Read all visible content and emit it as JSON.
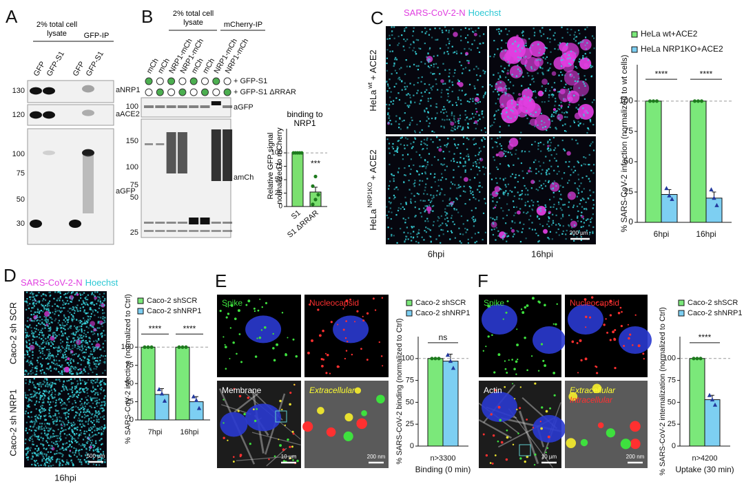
{
  "panel_labels": [
    "A",
    "B",
    "C",
    "D",
    "E",
    "F"
  ],
  "panel_a": {
    "header_lysate": "2% total cell lysate",
    "header_ip": "GFP-IP",
    "lanes": [
      "GFP",
      "GFP-S1",
      "GFP",
      "GFP-S1"
    ],
    "blots": [
      {
        "antibody": "aNRP1",
        "markers": [
          130
        ]
      },
      {
        "antibody": "aACE2",
        "markers": [
          120
        ]
      },
      {
        "antibody": "aGFP",
        "markers": [
          100,
          75,
          50,
          30
        ]
      }
    ]
  },
  "panel_b": {
    "header_lysate": "2% total cell lysate",
    "header_ip": "mCherry-IP",
    "lanes": [
      "mCh",
      "mCh",
      "NRP1-mCh",
      "NRP1-mCh",
      "mCh",
      "mCh",
      "NRP1-mCh",
      "NRP1-mCh"
    ],
    "conditions": [
      {
        "label": "+ GFP-S1",
        "present": [
          true,
          false,
          true,
          false,
          true,
          false,
          true,
          false
        ]
      },
      {
        "label": "+ GFP-S1 ΔRRAR",
        "present": [
          false,
          true,
          false,
          true,
          false,
          true,
          false,
          true
        ]
      }
    ],
    "blots": [
      {
        "antibody": "aGFP",
        "markers": [
          100
        ]
      },
      {
        "antibody": "amCh",
        "markers": [
          150,
          100,
          75,
          50,
          25
        ]
      }
    ]
  },
  "panel_c": {
    "stain_n": "SARS-CoV-2-N",
    "stain_h": "Hoechst",
    "rows": [
      {
        "base": "HeLa",
        "sup": "wt",
        "rest": "+ ACE2"
      },
      {
        "base": "HeLa",
        "sup": "NRP1KO",
        "rest": "+ ACE2"
      }
    ],
    "columns": [
      "6hpi",
      "16hpi"
    ],
    "scale_bar": "200 µm"
  },
  "panel_d": {
    "stain_n": "SARS-CoV-2-N",
    "stain_h": "Hoechst",
    "rows": [
      "Caco-2 sh SCR",
      "Caco-2 sh NRP1"
    ],
    "column": "16hpi",
    "scale_bar": "500 µm"
  },
  "panel_e": {
    "tiles": [
      "Spike",
      "Nucleocapsid",
      "Membrane",
      "Extracellular"
    ],
    "scale_bars": [
      "10 µm",
      "200 nm"
    ]
  },
  "panel_f": {
    "tiles": [
      "Spike",
      "Nucleocapsid",
      "Actin"
    ],
    "overlay": [
      "Extracellular",
      "Intracellular"
    ],
    "scale_bars": [
      "10 µm",
      "200 nm"
    ]
  },
  "chart_data": [
    {
      "type": "bar",
      "title": "binding to NRP1",
      "ylabel": "Relative GFP signal normalized to mCherry",
      "categories": [
        "S1",
        "S1 ΔRRAR"
      ],
      "series": [
        {
          "color": "#7be06f",
          "values": [
            100,
            27
          ],
          "errors": [
            null,
            9
          ],
          "points": [
            [
              100,
              100,
              100,
              100,
              100
            ],
            [
              4,
              13,
              22,
              38,
              56
            ]
          ],
          "point_color": "#1e7a1e",
          "marker": "circle"
        }
      ],
      "ylim": [
        0,
        145
      ],
      "yticks": [
        0,
        25,
        50,
        75,
        100
      ],
      "refline": 100,
      "significance": [
        null,
        "***"
      ]
    },
    {
      "type": "bar",
      "ylabel": "% SARS-CoV-2 infection (normalized to wt cells)",
      "categories": [
        "6hpi",
        "16hpi"
      ],
      "series": [
        {
          "name": "HeLa wt+ACE2",
          "color": "#7be87a",
          "values": [
            100,
            100
          ],
          "errors": [
            null,
            null
          ],
          "points": [
            [
              100,
              100,
              100
            ],
            [
              100,
              100,
              100
            ]
          ],
          "point_color": "#1e7a1e",
          "marker": "circle"
        },
        {
          "name": "HeLa NRP1KO+ACE2",
          "color": "#7dcff2",
          "values": [
            23,
            20
          ],
          "errors": [
            4,
            5
          ],
          "points": [
            [
              28,
              22,
              19
            ],
            [
              27,
              20,
              14
            ]
          ],
          "point_color": "#233a9e",
          "marker": "triangle"
        }
      ],
      "ylim": [
        0,
        130
      ],
      "yticks": [
        0,
        25,
        50,
        75,
        100
      ],
      "refline": 100,
      "significance": [
        "****",
        "****"
      ],
      "legend": "top-left"
    },
    {
      "type": "bar",
      "ylabel": "% SARS-CoV-2 infection (normalized to Ctrl)",
      "categories": [
        "7hpi",
        "16hpi"
      ],
      "series": [
        {
          "name": "Caco-2 shSCR",
          "color": "#7be87a",
          "values": [
            100,
            100
          ],
          "errors": [
            null,
            null
          ],
          "points": [
            [
              100,
              100,
              100
            ],
            [
              100,
              100,
              100
            ]
          ],
          "point_color": "#1e7a1e",
          "marker": "circle"
        },
        {
          "name": "Caco-2 shNRP1",
          "color": "#7dcff2",
          "values": [
            35,
            25
          ],
          "errors": [
            8,
            7
          ],
          "points": [
            [
              42,
              36,
              26
            ],
            [
              32,
              27,
              16
            ]
          ],
          "point_color": "#233a9e",
          "marker": "triangle"
        }
      ],
      "ylim": [
        0,
        140
      ],
      "yticks": [
        0,
        25,
        50,
        75,
        100
      ],
      "refline": 100,
      "significance": [
        "****",
        "****"
      ],
      "legend": "top-left"
    },
    {
      "type": "bar",
      "ylabel": "% SARS-CoV-2 binding (normalized to Ctrl)",
      "categories": [
        "n>3300"
      ],
      "xlabel": "Binding (0 min)",
      "series": [
        {
          "name": "Caco-2 shSCR",
          "color": "#7be87a",
          "values": [
            100
          ],
          "errors": [
            null
          ],
          "points": [
            [
              100,
              100,
              100
            ]
          ],
          "point_color": "#1e7a1e",
          "marker": "circle"
        },
        {
          "name": "Caco-2 shNRP1",
          "color": "#7dcff2",
          "values": [
            97
          ],
          "errors": [
            8
          ],
          "points": [
            [
              104,
              97,
              89
            ]
          ],
          "point_color": "#233a9e",
          "marker": "triangle"
        }
      ],
      "ylim": [
        0,
        125
      ],
      "yticks": [
        0,
        25,
        50,
        75,
        100
      ],
      "refline": 100,
      "significance": [
        "ns"
      ],
      "legend": "top-left"
    },
    {
      "type": "bar",
      "ylabel": "% SARS-CoV-2 internalization (normalized to Ctrl)",
      "categories": [
        "n>4200"
      ],
      "xlabel": "Uptake (30 min)",
      "series": [
        {
          "name": "Caco-2 shSCR",
          "color": "#7be87a",
          "values": [
            100
          ],
          "errors": [
            null
          ],
          "points": [
            [
              100,
              100,
              100
            ]
          ],
          "point_color": "#1e7a1e",
          "marker": "circle"
        },
        {
          "name": "Caco-2 shNRP1",
          "color": "#7dcff2",
          "values": [
            53
          ],
          "errors": [
            5
          ],
          "points": [
            [
              58,
              53,
              47
            ]
          ],
          "point_color": "#233a9e",
          "marker": "triangle"
        }
      ],
      "ylim": [
        0,
        125
      ],
      "yticks": [
        0,
        25,
        50,
        75,
        100
      ],
      "refline": 100,
      "significance": [
        "****"
      ],
      "legend": "top-left"
    }
  ]
}
